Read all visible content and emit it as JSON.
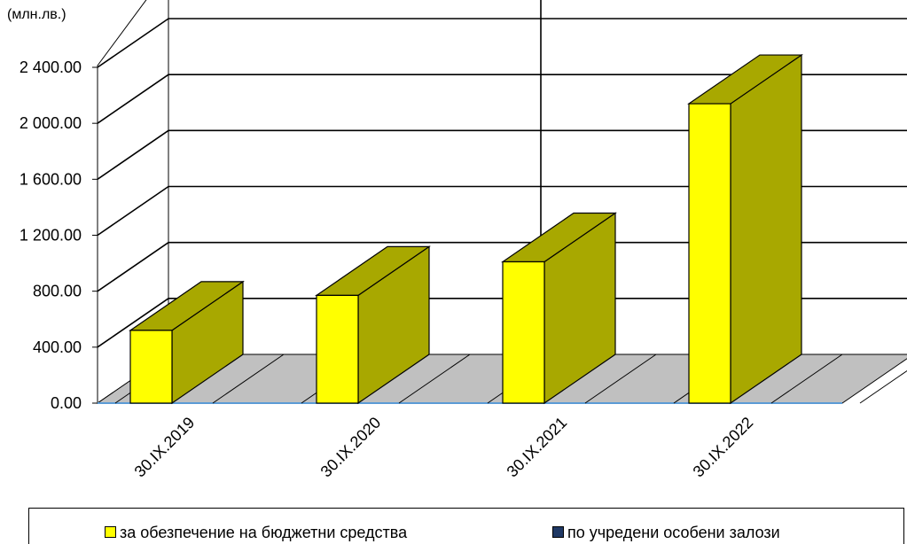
{
  "chart_data": {
    "type": "bar",
    "unit_label": "(млн.лв.)",
    "categories": [
      "30.IX.2019",
      "30.IX.2020",
      "30.IX.2021",
      "30.IX.2022"
    ],
    "series": [
      {
        "name": "за обезпечение на бюджетни средства",
        "values": [
          520,
          770,
          1010,
          2140
        ],
        "color": "#FFFF00",
        "shade": "#A8A800"
      },
      {
        "name": "по учредени  особени залози",
        "values": [
          0,
          0,
          0,
          0
        ],
        "color": "#1F3864"
      }
    ],
    "ylim": [
      0,
      2400
    ],
    "yticks": [
      0,
      400,
      800,
      1200,
      1600,
      2000,
      2400
    ],
    "ytick_labels": [
      "0.00",
      "400.00",
      "800.00",
      "1 200.00",
      "1 600.00",
      "2 000.00",
      "2 400.00"
    ],
    "grid": true,
    "legend_position": "bottom"
  }
}
